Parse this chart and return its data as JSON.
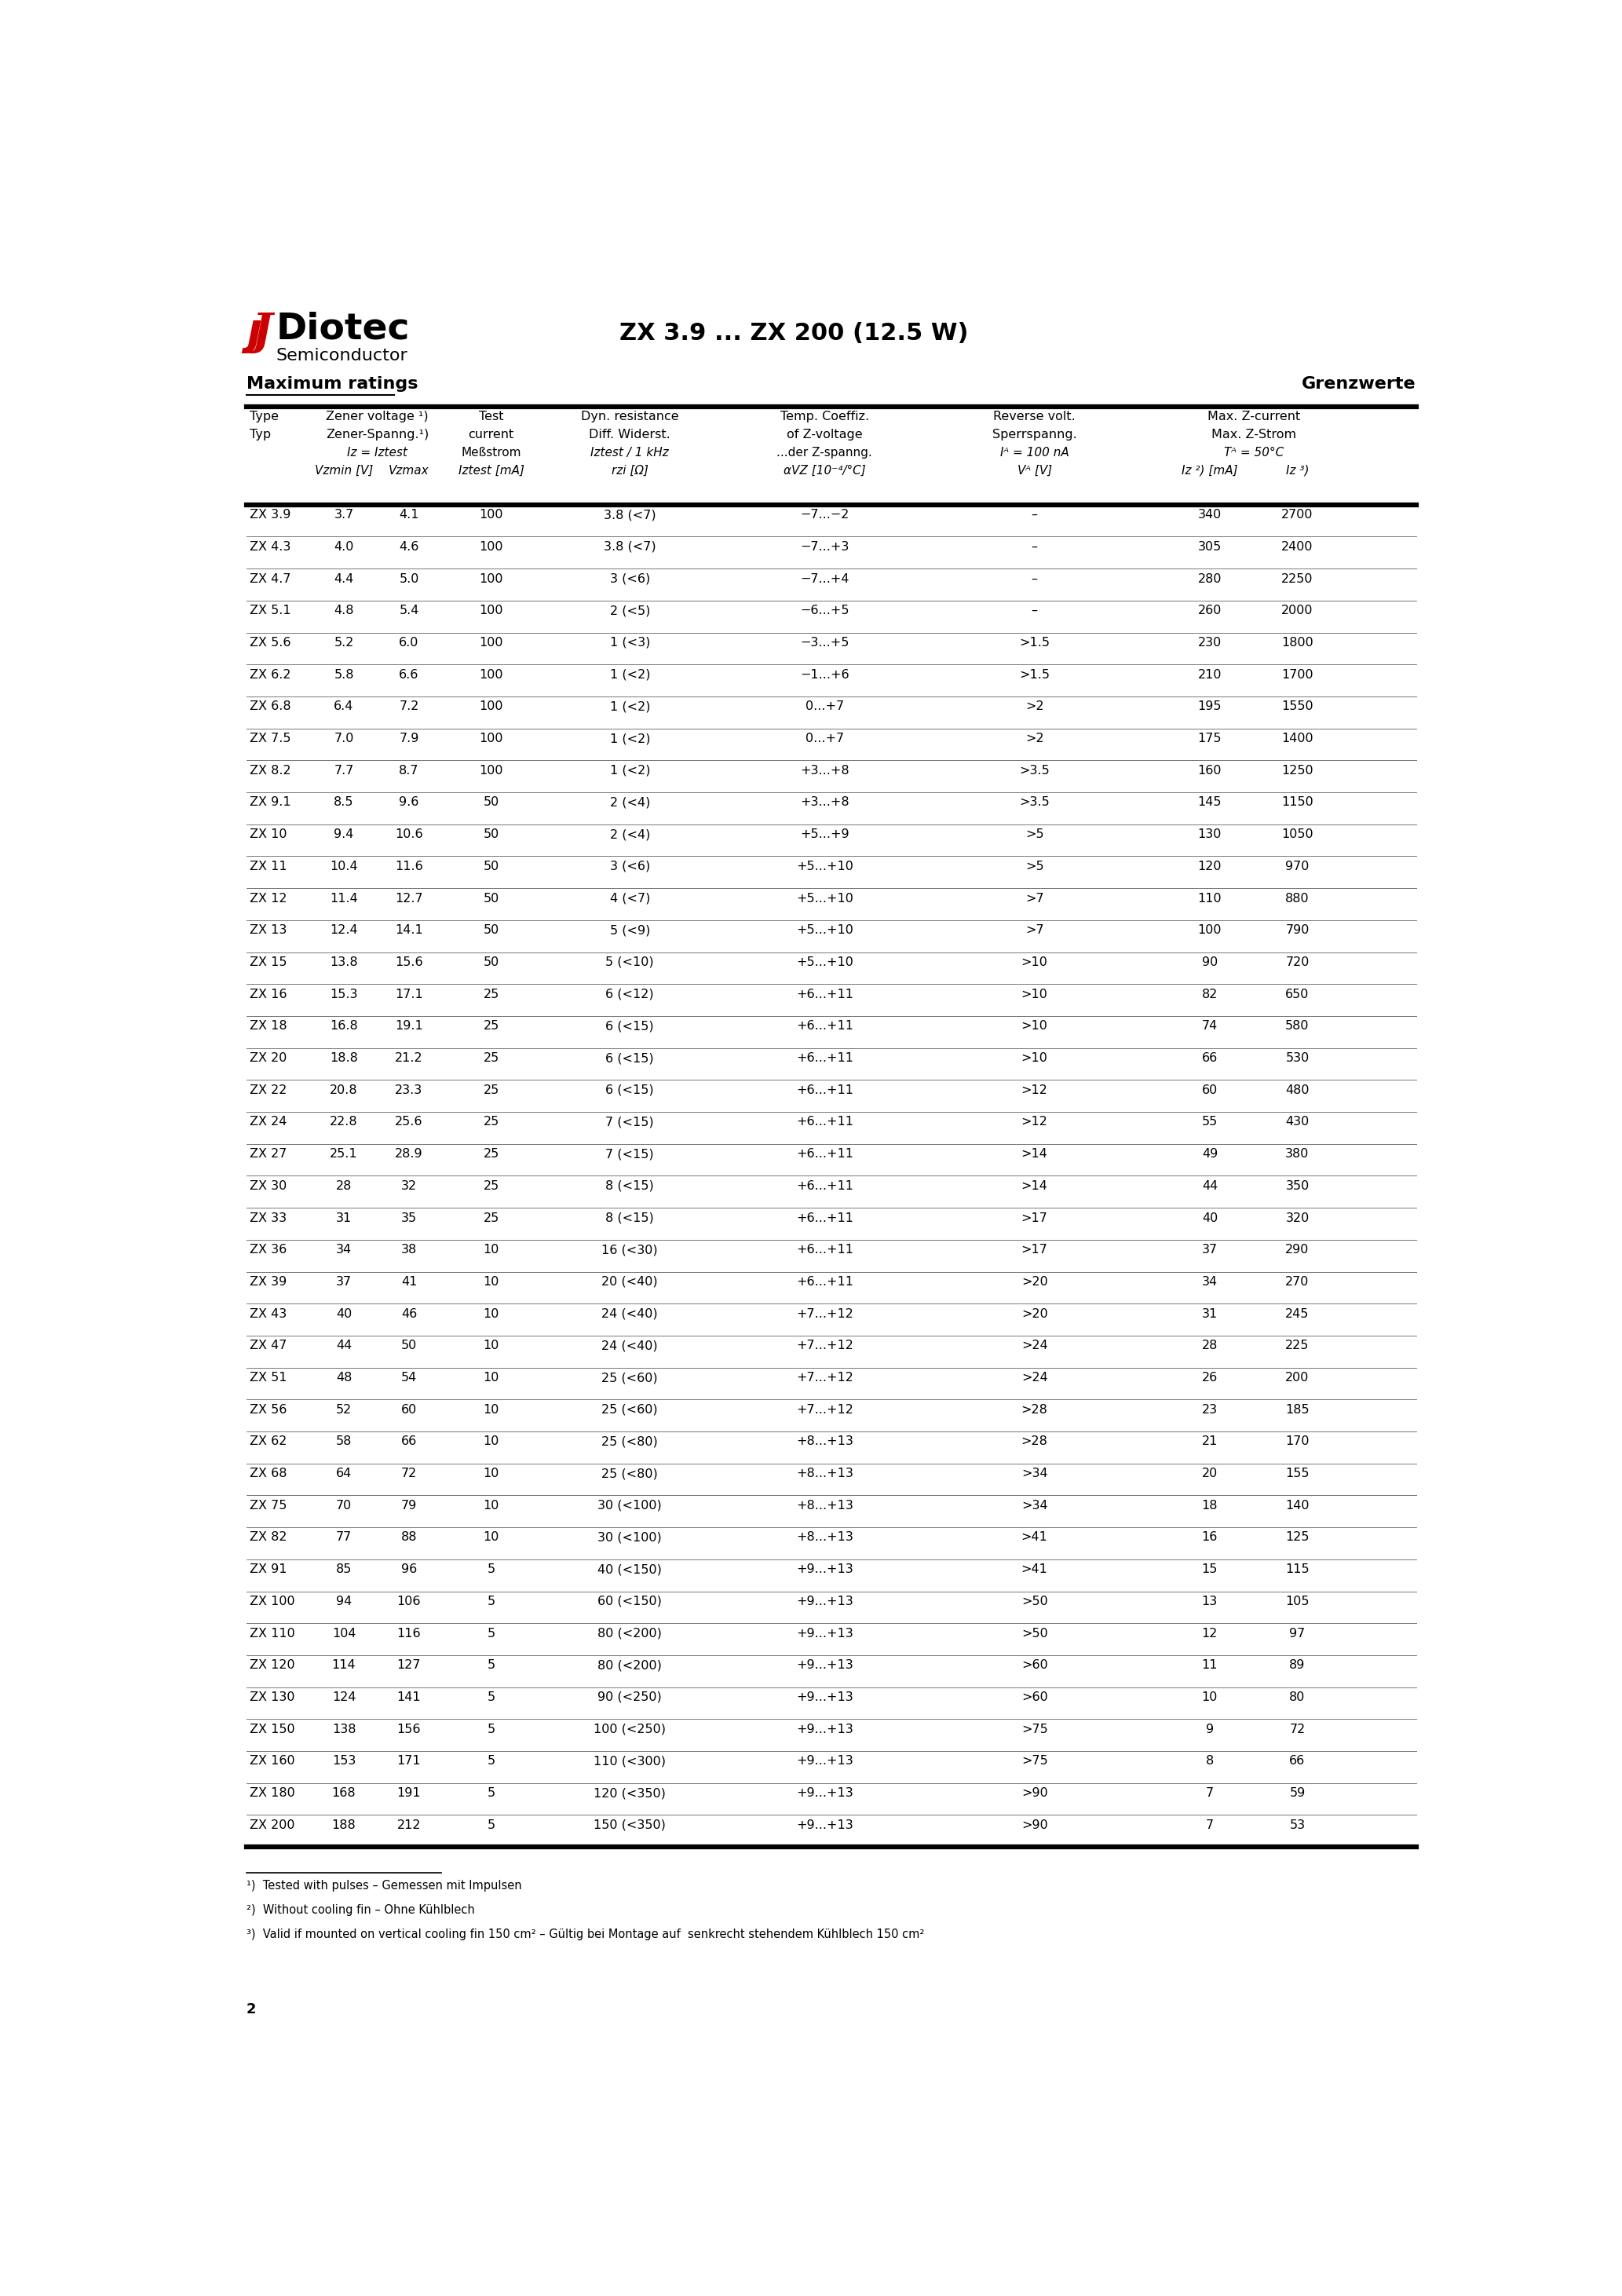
{
  "title": "ZX 3.9 ... ZX 200 (12.5 W)",
  "section_left": "Maximum ratings",
  "section_right": "Grenzwerte",
  "rows": [
    [
      "ZX 3.9",
      "3.7",
      "4.1",
      "100",
      "3.8 (<7)",
      "−7...−2",
      "–",
      "340",
      "2700"
    ],
    [
      "ZX 4.3",
      "4.0",
      "4.6",
      "100",
      "3.8 (<7)",
      "−7...+3",
      "–",
      "305",
      "2400"
    ],
    [
      "ZX 4.7",
      "4.4",
      "5.0",
      "100",
      "3 (<6)",
      "−7...+4",
      "–",
      "280",
      "2250"
    ],
    [
      "ZX 5.1",
      "4.8",
      "5.4",
      "100",
      "2 (<5)",
      "−6...+5",
      "–",
      "260",
      "2000"
    ],
    [
      "ZX 5.6",
      "5.2",
      "6.0",
      "100",
      "1 (<3)",
      "−3...+5",
      ">1.5",
      "230",
      "1800"
    ],
    [
      "ZX 6.2",
      "5.8",
      "6.6",
      "100",
      "1 (<2)",
      "−1...+6",
      ">1.5",
      "210",
      "1700"
    ],
    [
      "ZX 6.8",
      "6.4",
      "7.2",
      "100",
      "1 (<2)",
      "0...+7",
      ">2",
      "195",
      "1550"
    ],
    [
      "ZX 7.5",
      "7.0",
      "7.9",
      "100",
      "1 (<2)",
      "0...+7",
      ">2",
      "175",
      "1400"
    ],
    [
      "ZX 8.2",
      "7.7",
      "8.7",
      "100",
      "1 (<2)",
      "+3...+8",
      ">3.5",
      "160",
      "1250"
    ],
    [
      "ZX 9.1",
      "8.5",
      "9.6",
      "50",
      "2 (<4)",
      "+3...+8",
      ">3.5",
      "145",
      "1150"
    ],
    [
      "ZX 10",
      "9.4",
      "10.6",
      "50",
      "2 (<4)",
      "+5...+9",
      ">5",
      "130",
      "1050"
    ],
    [
      "ZX 11",
      "10.4",
      "11.6",
      "50",
      "3 (<6)",
      "+5...+10",
      ">5",
      "120",
      "970"
    ],
    [
      "ZX 12",
      "11.4",
      "12.7",
      "50",
      "4 (<7)",
      "+5...+10",
      ">7",
      "110",
      "880"
    ],
    [
      "ZX 13",
      "12.4",
      "14.1",
      "50",
      "5 (<9)",
      "+5...+10",
      ">7",
      "100",
      "790"
    ],
    [
      "ZX 15",
      "13.8",
      "15.6",
      "50",
      "5 (<10)",
      "+5...+10",
      ">10",
      "90",
      "720"
    ],
    [
      "ZX 16",
      "15.3",
      "17.1",
      "25",
      "6 (<12)",
      "+6...+11",
      ">10",
      "82",
      "650"
    ],
    [
      "ZX 18",
      "16.8",
      "19.1",
      "25",
      "6 (<15)",
      "+6...+11",
      ">10",
      "74",
      "580"
    ],
    [
      "ZX 20",
      "18.8",
      "21.2",
      "25",
      "6 (<15)",
      "+6...+11",
      ">10",
      "66",
      "530"
    ],
    [
      "ZX 22",
      "20.8",
      "23.3",
      "25",
      "6 (<15)",
      "+6...+11",
      ">12",
      "60",
      "480"
    ],
    [
      "ZX 24",
      "22.8",
      "25.6",
      "25",
      "7 (<15)",
      "+6...+11",
      ">12",
      "55",
      "430"
    ],
    [
      "ZX 27",
      "25.1",
      "28.9",
      "25",
      "7 (<15)",
      "+6...+11",
      ">14",
      "49",
      "380"
    ],
    [
      "ZX 30",
      "28",
      "32",
      "25",
      "8 (<15)",
      "+6...+11",
      ">14",
      "44",
      "350"
    ],
    [
      "ZX 33",
      "31",
      "35",
      "25",
      "8 (<15)",
      "+6...+11",
      ">17",
      "40",
      "320"
    ],
    [
      "ZX 36",
      "34",
      "38",
      "10",
      "16 (<30)",
      "+6...+11",
      ">17",
      "37",
      "290"
    ],
    [
      "ZX 39",
      "37",
      "41",
      "10",
      "20 (<40)",
      "+6...+11",
      ">20",
      "34",
      "270"
    ],
    [
      "ZX 43",
      "40",
      "46",
      "10",
      "24 (<40)",
      "+7...+12",
      ">20",
      "31",
      "245"
    ],
    [
      "ZX 47",
      "44",
      "50",
      "10",
      "24 (<40)",
      "+7...+12",
      ">24",
      "28",
      "225"
    ],
    [
      "ZX 51",
      "48",
      "54",
      "10",
      "25 (<60)",
      "+7...+12",
      ">24",
      "26",
      "200"
    ],
    [
      "ZX 56",
      "52",
      "60",
      "10",
      "25 (<60)",
      "+7...+12",
      ">28",
      "23",
      "185"
    ],
    [
      "ZX 62",
      "58",
      "66",
      "10",
      "25 (<80)",
      "+8...+13",
      ">28",
      "21",
      "170"
    ],
    [
      "ZX 68",
      "64",
      "72",
      "10",
      "25 (<80)",
      "+8...+13",
      ">34",
      "20",
      "155"
    ],
    [
      "ZX 75",
      "70",
      "79",
      "10",
      "30 (<100)",
      "+8...+13",
      ">34",
      "18",
      "140"
    ],
    [
      "ZX 82",
      "77",
      "88",
      "10",
      "30 (<100)",
      "+8...+13",
      ">41",
      "16",
      "125"
    ],
    [
      "ZX 91",
      "85",
      "96",
      "5",
      "40 (<150)",
      "+9...+13",
      ">41",
      "15",
      "115"
    ],
    [
      "ZX 100",
      "94",
      "106",
      "5",
      "60 (<150)",
      "+9...+13",
      ">50",
      "13",
      "105"
    ],
    [
      "ZX 110",
      "104",
      "116",
      "5",
      "80 (<200)",
      "+9...+13",
      ">50",
      "12",
      "97"
    ],
    [
      "ZX 120",
      "114",
      "127",
      "5",
      "80 (<200)",
      "+9...+13",
      ">60",
      "11",
      "89"
    ],
    [
      "ZX 130",
      "124",
      "141",
      "5",
      "90 (<250)",
      "+9...+13",
      ">60",
      "10",
      "80"
    ],
    [
      "ZX 150",
      "138",
      "156",
      "5",
      "100 (<250)",
      "+9...+13",
      ">75",
      "9",
      "72"
    ],
    [
      "ZX 160",
      "153",
      "171",
      "5",
      "110 (<300)",
      "+9...+13",
      ">75",
      "8",
      "66"
    ],
    [
      "ZX 180",
      "168",
      "191",
      "5",
      "120 (<350)",
      "+9...+13",
      ">90",
      "7",
      "59"
    ],
    [
      "ZX 200",
      "188",
      "212",
      "5",
      "150 (<350)",
      "+9...+13",
      ">90",
      "7",
      "53"
    ]
  ],
  "footnotes": [
    "¹)  Tested with pulses – Gemessen mit Impulsen",
    "²)  Without cooling fin – Ohne Kühlblech",
    "³)  Valid if mounted on vertical cooling fin 150 cm² – Gültig bei Montage auf  senkrecht stehendem Kühlblech 150 cm²"
  ],
  "page_number": "2",
  "logo_text_diotec": "Diotec",
  "logo_text_semi": "Semiconductor",
  "title_str": "ZX 3.9 ... ZX 200 (12.5 W)"
}
